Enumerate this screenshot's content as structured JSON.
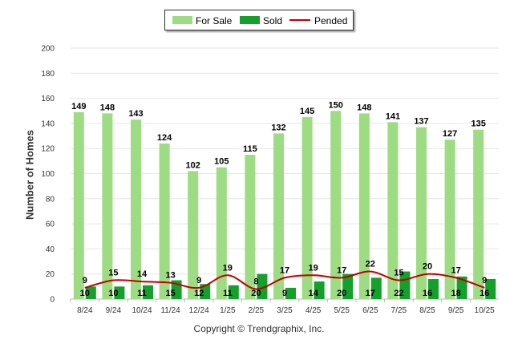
{
  "chart_data": {
    "type": "bar",
    "ylabel": "Number of Homes",
    "xlabel": "",
    "ylim": [
      0,
      200
    ],
    "yticks": [
      0,
      20,
      40,
      60,
      80,
      100,
      120,
      140,
      160,
      180,
      200
    ],
    "categories": [
      "8/24",
      "9/24",
      "10/24",
      "11/24",
      "12/24",
      "1/25",
      "2/25",
      "3/25",
      "4/25",
      "5/25",
      "6/25",
      "7/25",
      "8/25",
      "9/25",
      "10/25"
    ],
    "series": [
      {
        "name": "For Sale",
        "type": "bar",
        "color": "#9ddc82",
        "values": [
          149,
          148,
          143,
          124,
          102,
          105,
          115,
          132,
          145,
          150,
          148,
          141,
          137,
          127,
          135
        ]
      },
      {
        "name": "Sold",
        "type": "bar",
        "color": "#14a02a",
        "values": [
          10,
          10,
          11,
          15,
          12,
          11,
          20,
          9,
          14,
          20,
          17,
          22,
          16,
          18,
          16
        ]
      },
      {
        "name": "Pended",
        "type": "line",
        "color": "#c00000",
        "values": [
          9,
          15,
          14,
          13,
          9,
          19,
          8,
          17,
          19,
          17,
          22,
          15,
          20,
          17,
          9
        ]
      }
    ],
    "legend": "top-center"
  },
  "legend": {
    "for_sale": "For Sale",
    "sold": "Sold",
    "pended": "Pended"
  },
  "footer": {
    "copyright": "Copyright © Trendgraphix, Inc."
  }
}
